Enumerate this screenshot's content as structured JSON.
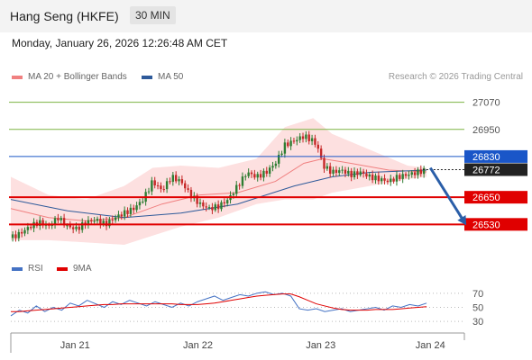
{
  "header": {
    "title": "Hang Seng (HKFE)",
    "interval": "30 MIN"
  },
  "timestamp": "Monday, January 26, 2026 12:26:48 AM CET",
  "legend": [
    {
      "label": "MA 20 + Bollinger Bands",
      "color": "#f08080"
    },
    {
      "label": "MA 50",
      "color": "#2e5a9a"
    }
  ],
  "credit": "Research © 2026 Trading Central",
  "colors": {
    "resistance": "#7cb342",
    "support": "#e00000",
    "pivot": "#1a56c8",
    "last": "#222222",
    "up_candle": "#2e7d32",
    "down_candle": "#c62828",
    "bollinger_fill": "#fde0e0",
    "arrow": "#2a5ea8"
  },
  "chart_data": [
    {
      "type": "candlestick",
      "x_ticks": [
        "Jan 21",
        "Jan 22",
        "Jan 23",
        "Jan 24"
      ],
      "ylim": [
        26400,
        27140
      ],
      "levels": [
        {
          "value": 27070,
          "label": "27070",
          "kind": "resistance"
        },
        {
          "value": 26950,
          "label": "26950",
          "kind": "resistance"
        },
        {
          "value": 26830,
          "label": "26830",
          "kind": "pivot"
        },
        {
          "value": 26772,
          "label": "26772",
          "kind": "last"
        },
        {
          "value": 26650,
          "label": "26650",
          "kind": "support"
        },
        {
          "value": 26530,
          "label": "26530",
          "kind": "support"
        }
      ],
      "series": [
        {
          "name": "MA 20 + Bollinger Bands",
          "values": []
        },
        {
          "name": "MA 50",
          "values": []
        }
      ],
      "close_path": [
        [
          0,
          26470
        ],
        [
          5,
          26490
        ],
        [
          10,
          26520
        ],
        [
          15,
          26540
        ],
        [
          20,
          26520
        ],
        [
          25,
          26560
        ],
        [
          30,
          26520
        ],
        [
          35,
          26510
        ],
        [
          40,
          26540
        ],
        [
          45,
          26550
        ],
        [
          50,
          26530
        ],
        [
          55,
          26560
        ],
        [
          60,
          26580
        ],
        [
          65,
          26600
        ],
        [
          70,
          26640
        ],
        [
          75,
          26720
        ],
        [
          80,
          26680
        ],
        [
          85,
          26740
        ],
        [
          90,
          26720
        ],
        [
          95,
          26660
        ],
        [
          100,
          26620
        ],
        [
          105,
          26600
        ],
        [
          110,
          26610
        ],
        [
          115,
          26640
        ],
        [
          120,
          26700
        ],
        [
          125,
          26760
        ],
        [
          130,
          26740
        ],
        [
          135,
          26760
        ],
        [
          140,
          26800
        ],
        [
          145,
          26880
        ],
        [
          150,
          26900
        ],
        [
          155,
          26920
        ],
        [
          160,
          26900
        ],
        [
          163,
          26860
        ],
        [
          165,
          26790
        ],
        [
          170,
          26760
        ],
        [
          175,
          26770
        ],
        [
          180,
          26750
        ],
        [
          185,
          26760
        ],
        [
          190,
          26740
        ],
        [
          195,
          26730
        ],
        [
          200,
          26720
        ],
        [
          205,
          26740
        ],
        [
          210,
          26750
        ],
        [
          215,
          26760
        ],
        [
          220,
          26772
        ]
      ],
      "ma20_path": [
        [
          0,
          26600
        ],
        [
          20,
          26560
        ],
        [
          40,
          26545
        ],
        [
          60,
          26560
        ],
        [
          80,
          26620
        ],
        [
          100,
          26660
        ],
        [
          120,
          26670
        ],
        [
          140,
          26720
        ],
        [
          155,
          26800
        ],
        [
          165,
          26820
        ],
        [
          180,
          26800
        ],
        [
          200,
          26770
        ],
        [
          220,
          26762
        ]
      ],
      "ma50_path": [
        [
          0,
          26640
        ],
        [
          30,
          26590
        ],
        [
          60,
          26560
        ],
        [
          90,
          26580
        ],
        [
          120,
          26620
        ],
        [
          150,
          26700
        ],
        [
          170,
          26740
        ],
        [
          190,
          26760
        ],
        [
          220,
          26770
        ]
      ],
      "bb_upper": [
        [
          0,
          26740
        ],
        [
          20,
          26660
        ],
        [
          40,
          26640
        ],
        [
          60,
          26700
        ],
        [
          75,
          26780
        ],
        [
          90,
          26790
        ],
        [
          110,
          26780
        ],
        [
          130,
          26820
        ],
        [
          145,
          26960
        ],
        [
          160,
          27000
        ],
        [
          170,
          26930
        ],
        [
          190,
          26860
        ],
        [
          210,
          26790
        ],
        [
          220,
          26780
        ]
      ],
      "bb_lower": [
        [
          0,
          26460
        ],
        [
          20,
          26460
        ],
        [
          40,
          26450
        ],
        [
          60,
          26440
        ],
        [
          75,
          26480
        ],
        [
          90,
          26520
        ],
        [
          110,
          26560
        ],
        [
          130,
          26620
        ],
        [
          145,
          26640
        ],
        [
          160,
          26640
        ],
        [
          170,
          26670
        ],
        [
          190,
          26700
        ],
        [
          210,
          26730
        ],
        [
          220,
          26740
        ]
      ],
      "forecast_arrow": {
        "from": [
          222,
          26780
        ],
        "to": [
          240,
          26540
        ]
      }
    },
    {
      "type": "line",
      "legend": [
        {
          "label": "RSI",
          "color": "#4472c4"
        },
        {
          "label": "9MA",
          "color": "#e00000"
        }
      ],
      "y_ticks": [
        {
          "value": 70,
          "label": "70"
        },
        {
          "value": 50,
          "label": "50"
        },
        {
          "value": 30,
          "label": "30"
        }
      ],
      "ylim": [
        20,
        80
      ],
      "series": [
        {
          "name": "RSI",
          "values": [
            38,
            46,
            42,
            52,
            44,
            50,
            46,
            56,
            52,
            60,
            55,
            50,
            58,
            54,
            60,
            56,
            52,
            58,
            54,
            50,
            56,
            52,
            58,
            62,
            66,
            60,
            64,
            68,
            66,
            70,
            72,
            68,
            70,
            66,
            48,
            46,
            48,
            44,
            46,
            48,
            44,
            46,
            48,
            50,
            46,
            52,
            50,
            54,
            52,
            56
          ]
        },
        {
          "name": "9MA",
          "values": [
            44,
            44,
            45,
            46,
            47,
            48,
            49,
            50,
            51,
            52,
            53,
            54,
            54,
            55,
            55,
            55,
            55,
            55,
            55,
            55,
            54,
            54,
            54,
            55,
            56,
            58,
            60,
            62,
            64,
            66,
            67,
            68,
            69,
            69,
            65,
            60,
            55,
            52,
            49,
            47,
            46,
            46,
            46,
            47,
            47,
            47,
            48,
            49,
            50,
            51
          ]
        }
      ]
    }
  ]
}
